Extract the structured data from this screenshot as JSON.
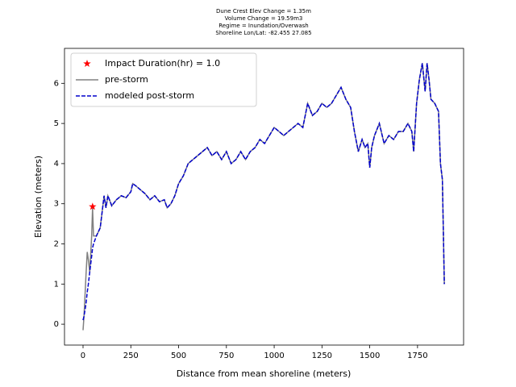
{
  "chart_data": {
    "type": "line",
    "title": [
      "Dune Crest Elev Change = 1.35m",
      "Volume Change = 19.59m3",
      "Regime = Inundation/Overwash",
      "Shoreline Lon/Lat: -82.455 27.085"
    ],
    "xlabel": "Distance from mean shoreline (meters)",
    "ylabel": "Elevation (meters)",
    "x": [
      0,
      5,
      15,
      22,
      28,
      35,
      45,
      50,
      55,
      70,
      90,
      110,
      120,
      130,
      150,
      175,
      200,
      225,
      250,
      260,
      275,
      300,
      325,
      350,
      375,
      400,
      425,
      440,
      460,
      480,
      500,
      525,
      550,
      575,
      600,
      625,
      650,
      675,
      700,
      725,
      750,
      775,
      800,
      825,
      850,
      875,
      900,
      925,
      950,
      975,
      1000,
      1025,
      1050,
      1075,
      1100,
      1125,
      1150,
      1175,
      1200,
      1225,
      1250,
      1275,
      1300,
      1325,
      1350,
      1375,
      1400,
      1420,
      1440,
      1460,
      1475,
      1490,
      1500,
      1510,
      1525,
      1550,
      1575,
      1600,
      1625,
      1650,
      1675,
      1700,
      1720,
      1730,
      1745,
      1760,
      1775,
      1790,
      1800,
      1810,
      1820,
      1840,
      1860,
      1870,
      1880,
      1890
    ],
    "series": [
      {
        "name": "pre-storm",
        "color": "#808080",
        "dash": false,
        "values": [
          -0.15,
          0.2,
          1.2,
          1.8,
          1.6,
          1.3,
          2.2,
          2.9,
          2.2,
          2.2,
          2.4,
          3.2,
          2.9,
          3.2,
          2.95,
          3.1,
          3.2,
          3.15,
          3.3,
          3.5,
          3.45,
          3.35,
          3.25,
          3.1,
          3.2,
          3.05,
          3.1,
          2.9,
          3.0,
          3.2,
          3.5,
          3.7,
          4.0,
          4.1,
          4.2,
          4.3,
          4.4,
          4.2,
          4.3,
          4.1,
          4.3,
          4.0,
          4.1,
          4.3,
          4.1,
          4.3,
          4.4,
          4.6,
          4.5,
          4.7,
          4.9,
          4.8,
          4.7,
          4.8,
          4.9,
          5.0,
          4.9,
          5.5,
          5.2,
          5.3,
          5.5,
          5.4,
          5.5,
          5.7,
          5.9,
          5.6,
          5.4,
          4.8,
          4.3,
          4.6,
          4.4,
          4.5,
          3.9,
          4.4,
          4.7,
          5.0,
          4.5,
          4.7,
          4.6,
          4.8,
          4.8,
          5.0,
          4.8,
          4.3,
          5.5,
          6.1,
          6.5,
          5.8,
          6.5,
          6.1,
          5.6,
          5.5,
          5.3,
          4.0,
          3.6,
          1.0
        ]
      },
      {
        "name": "modeled post-storm",
        "color": "#0000cc",
        "dash": true,
        "values": [
          0.1,
          0.2,
          0.5,
          0.8,
          1.0,
          1.3,
          1.7,
          1.9,
          2.0,
          2.2,
          2.4,
          3.2,
          2.9,
          3.2,
          2.95,
          3.1,
          3.2,
          3.15,
          3.3,
          3.5,
          3.45,
          3.35,
          3.25,
          3.1,
          3.2,
          3.05,
          3.1,
          2.9,
          3.0,
          3.2,
          3.5,
          3.7,
          4.0,
          4.1,
          4.2,
          4.3,
          4.4,
          4.2,
          4.3,
          4.1,
          4.3,
          4.0,
          4.1,
          4.3,
          4.1,
          4.3,
          4.4,
          4.6,
          4.5,
          4.7,
          4.9,
          4.8,
          4.7,
          4.8,
          4.9,
          5.0,
          4.9,
          5.5,
          5.2,
          5.3,
          5.5,
          5.4,
          5.5,
          5.7,
          5.9,
          5.6,
          5.4,
          4.8,
          4.3,
          4.6,
          4.4,
          4.5,
          3.9,
          4.4,
          4.7,
          5.0,
          4.5,
          4.7,
          4.6,
          4.8,
          4.8,
          5.0,
          4.8,
          4.3,
          5.5,
          6.1,
          6.5,
          5.8,
          6.5,
          6.1,
          5.6,
          5.5,
          5.3,
          4.0,
          3.6,
          1.0
        ]
      }
    ],
    "marker": {
      "name": "Impact Duration(hr) = 1.0",
      "color": "#ff0000",
      "x": 50,
      "value": 2.93
    },
    "xlim": [
      -97,
      1991
    ],
    "ylim": [
      -0.52,
      6.87
    ],
    "xticks": [
      0,
      250,
      500,
      750,
      1000,
      1250,
      1500,
      1750
    ],
    "yticks": [
      0,
      1,
      2,
      3,
      4,
      5,
      6
    ],
    "legend": "upper-left"
  }
}
